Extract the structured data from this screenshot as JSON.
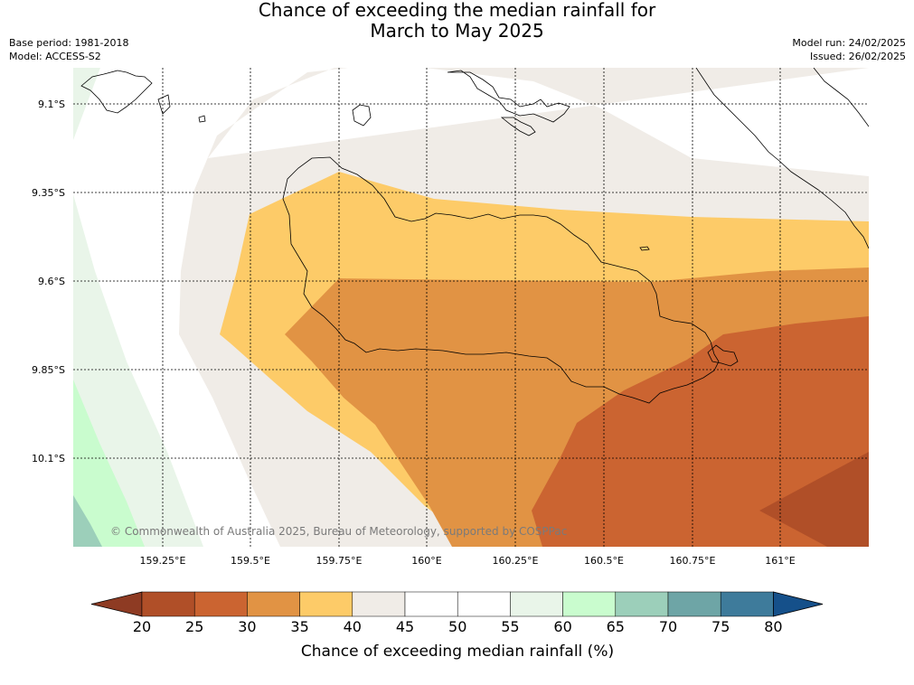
{
  "title": {
    "line1": "Chance of exceeding the median rainfall for",
    "line2": "March to May 2025"
  },
  "meta": {
    "base_period": "Base period: 1981-2018",
    "model": "Model: ACCESS-S2",
    "model_run": "Model run: 24/02/2025",
    "issued": "Issued: 26/02/2025"
  },
  "map": {
    "lon_ticks": [
      "159.25°E",
      "159.5°E",
      "159.75°E",
      "160°E",
      "160.25°E",
      "160.5°E",
      "160.75°E",
      "161°E"
    ],
    "lat_ticks": [
      "9.1°S",
      "9.35°S",
      "9.6°S",
      "9.85°S",
      "10.1°S"
    ],
    "copyright": "© Commonwealth of Australia 2025, Bureau of Meteorology, supported by COSPPac",
    "gridlines": true,
    "coastline_color": "#000000"
  },
  "colorbar": {
    "label": "Chance of exceeding median rainfall (%)",
    "ticks": [
      "20",
      "25",
      "30",
      "35",
      "40",
      "45",
      "50",
      "55",
      "60",
      "65",
      "70",
      "75",
      "80"
    ],
    "under_color": "#8e3b23",
    "over_color": "#15508a",
    "colors": [
      "#b04f28",
      "#cb6431",
      "#e19344",
      "#fdcb68",
      "#f0ece7",
      "#ffffff",
      "#ffffff",
      "#e9f5e9",
      "#c9fcce",
      "#9ccfba",
      "#6ea5a6",
      "#3e7b9b"
    ]
  },
  "chart_data": {
    "type": "heatmap",
    "title": "Chance of exceeding the median rainfall for March to May 2025",
    "colorbar_label": "Chance of exceeding median rainfall (%)",
    "bins": [
      {
        "range": [
          20,
          25
        ],
        "color": "#b04f28"
      },
      {
        "range": [
          25,
          30
        ],
        "color": "#cb6431"
      },
      {
        "range": [
          30,
          35
        ],
        "color": "#e19344"
      },
      {
        "range": [
          35,
          40
        ],
        "color": "#fdcb68"
      },
      {
        "range": [
          40,
          45
        ],
        "color": "#f0ece7"
      },
      {
        "range": [
          45,
          50
        ],
        "color": "#ffffff"
      },
      {
        "range": [
          50,
          55
        ],
        "color": "#ffffff"
      },
      {
        "range": [
          55,
          60
        ],
        "color": "#e9f5e9"
      },
      {
        "range": [
          60,
          65
        ],
        "color": "#c9fcce"
      },
      {
        "range": [
          65,
          70
        ],
        "color": "#9ccfba"
      },
      {
        "range": [
          70,
          75
        ],
        "color": "#6ea5a6"
      },
      {
        "range": [
          75,
          80
        ],
        "color": "#3e7b9b"
      }
    ],
    "lon_range": [
      159.0,
      161.25
    ],
    "lat_range": [
      -10.35,
      -9.0
    ]
  }
}
